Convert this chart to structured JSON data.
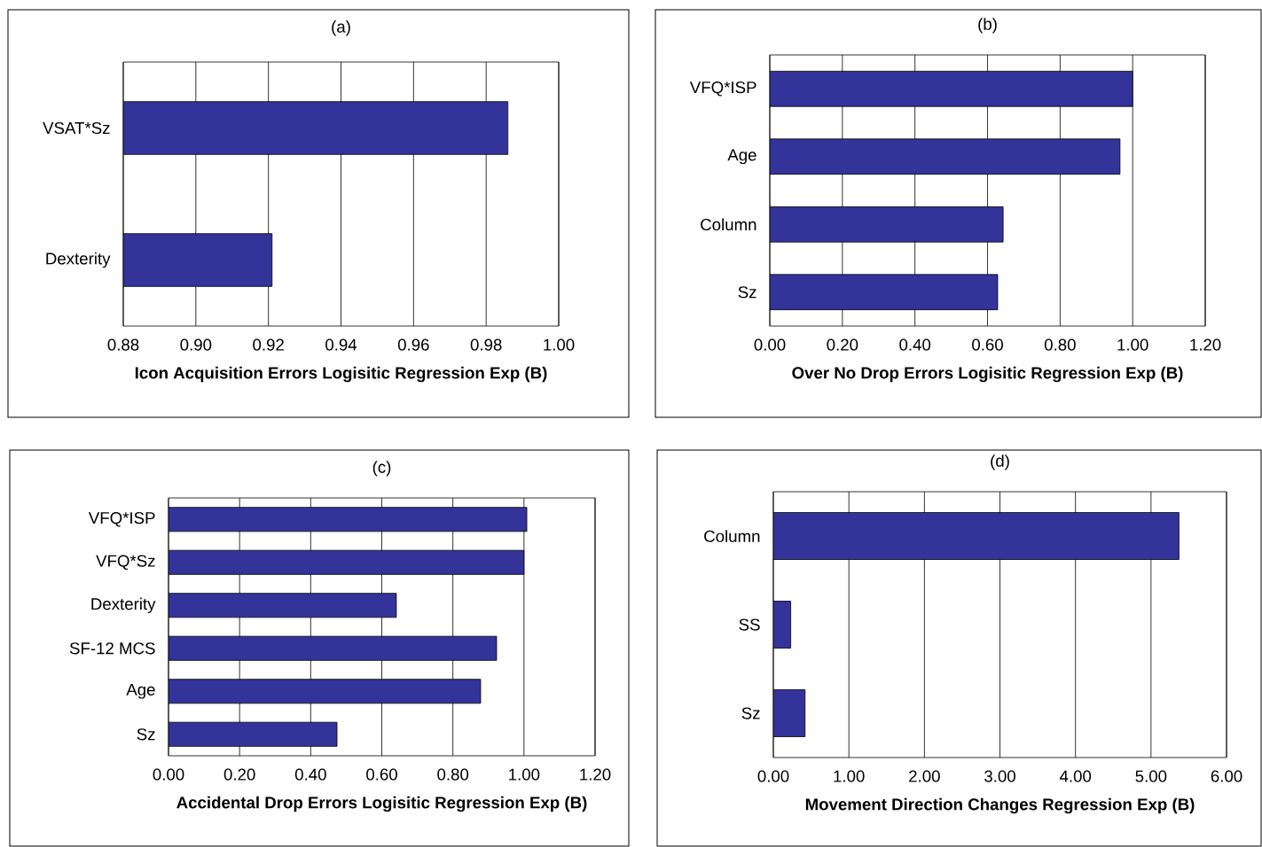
{
  "chart_data": [
    {
      "type": "bar",
      "orientation": "horizontal",
      "title": "(a)",
      "xlabel": "Icon Acquisition Errors Logisitic Regression Exp (B)",
      "categories": [
        "VSAT*Sz",
        "Dexterity"
      ],
      "values": [
        0.986,
        0.921
      ],
      "color": "#333399",
      "xlim": [
        0.88,
        1.0
      ],
      "xticks": [
        {
          "value": 0.88,
          "label": "0.88"
        },
        {
          "value": 0.9,
          "label": "0.90"
        },
        {
          "value": 0.92,
          "label": "0.92"
        },
        {
          "value": 0.94,
          "label": "0.94"
        },
        {
          "value": 0.96,
          "label": "0.96"
        },
        {
          "value": 0.98,
          "label": "0.98"
        },
        {
          "value": 1.0,
          "label": "1.00"
        }
      ],
      "grid": "x"
    },
    {
      "type": "bar",
      "orientation": "horizontal",
      "title": "(b)",
      "xlabel": "Over No Drop Errors Logisitic Regression Exp (B)",
      "categories": [
        "VFQ*ISP",
        "Age",
        "Column",
        "Sz"
      ],
      "values": [
        1.0,
        0.965,
        0.643,
        0.628
      ],
      "color": "#333399",
      "xlim": [
        0.0,
        1.2
      ],
      "xticks": [
        {
          "value": 0,
          "label": "0.00"
        },
        {
          "value": 0.2,
          "label": "0.20"
        },
        {
          "value": 0.4,
          "label": "0.40"
        },
        {
          "value": 0.6,
          "label": "0.60"
        },
        {
          "value": 0.8,
          "label": "0.80"
        },
        {
          "value": 1.0,
          "label": "1.00"
        },
        {
          "value": 1.2,
          "label": "1.20"
        }
      ],
      "grid": "x"
    },
    {
      "type": "bar",
      "orientation": "horizontal",
      "title": "(c)",
      "xlabel": "Accidental Drop Errors Logisitic Regression Exp (B)",
      "categories": [
        "VFQ*ISP",
        "VFQ*Sz",
        "Dexterity",
        "SF-12 MCS",
        "Age",
        "Sz"
      ],
      "values": [
        1.008,
        1.0,
        0.641,
        0.923,
        0.878,
        0.474
      ],
      "color": "#333399",
      "xlim": [
        0.0,
        1.2
      ],
      "xticks": [
        {
          "value": 0,
          "label": "0.00"
        },
        {
          "value": 0.2,
          "label": "0.20"
        },
        {
          "value": 0.4,
          "label": "0.40"
        },
        {
          "value": 0.6,
          "label": "0.60"
        },
        {
          "value": 0.8,
          "label": "0.80"
        },
        {
          "value": 1.0,
          "label": "1.00"
        },
        {
          "value": 1.2,
          "label": "1.20"
        }
      ],
      "grid": "x"
    },
    {
      "type": "bar",
      "orientation": "horizontal",
      "title": "(d)",
      "xlabel": "Movement Direction Changes Regression Exp (B)",
      "categories": [
        "Column",
        "SS",
        "Sz"
      ],
      "values": [
        5.37,
        0.23,
        0.42
      ],
      "color": "#333399",
      "xlim": [
        0.0,
        6.0
      ],
      "xticks": [
        {
          "value": 0,
          "label": "0.00"
        },
        {
          "value": 1,
          "label": "1.00"
        },
        {
          "value": 2,
          "label": "2.00"
        },
        {
          "value": 3,
          "label": "3.00"
        },
        {
          "value": 4,
          "label": "4.00"
        },
        {
          "value": 5,
          "label": "5.00"
        },
        {
          "value": 6,
          "label": "6.00"
        }
      ],
      "grid": "x"
    }
  ]
}
